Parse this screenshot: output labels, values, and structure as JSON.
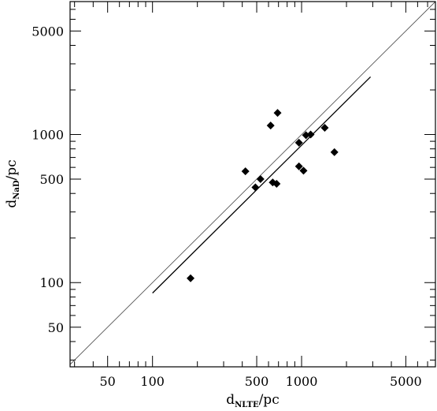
{
  "chart_data": {
    "type": "scatter",
    "title": "",
    "xlabel": {
      "main": "d",
      "sub": "NLTE",
      "unit": "/pc"
    },
    "ylabel": {
      "main": "d",
      "sub": "NaD",
      "unit": "/pc"
    },
    "xscale": "log",
    "yscale": "log",
    "xlim": [
      28,
      7900
    ],
    "ylim": [
      27,
      7900
    ],
    "xticks_major": [
      50,
      100,
      500,
      1000,
      5000
    ],
    "xtick_labels": [
      "50",
      "100",
      "500",
      "1000",
      "5000"
    ],
    "yticks_major": [
      50,
      100,
      500,
      1000,
      5000
    ],
    "ytick_labels": [
      "50",
      "100",
      "500",
      "1000",
      "5000"
    ],
    "grid": false,
    "legend": "none",
    "marker": "filled-diamond",
    "points": [
      {
        "x": 180,
        "y": 107
      },
      {
        "x": 420,
        "y": 565
      },
      {
        "x": 490,
        "y": 440
      },
      {
        "x": 530,
        "y": 500
      },
      {
        "x": 620,
        "y": 1150
      },
      {
        "x": 640,
        "y": 475
      },
      {
        "x": 680,
        "y": 465
      },
      {
        "x": 690,
        "y": 1400
      },
      {
        "x": 960,
        "y": 610
      },
      {
        "x": 960,
        "y": 880
      },
      {
        "x": 1030,
        "y": 570
      },
      {
        "x": 1070,
        "y": 990
      },
      {
        "x": 1150,
        "y": 1000
      },
      {
        "x": 1430,
        "y": 1110
      },
      {
        "x": 1660,
        "y": 760
      }
    ],
    "lines": [
      {
        "kind": "one-to-one",
        "x": [
          28,
          7900
        ],
        "y": [
          28,
          7900
        ]
      },
      {
        "kind": "fit",
        "x": [
          100,
          2900
        ],
        "y": [
          85,
          2450
        ]
      }
    ]
  }
}
